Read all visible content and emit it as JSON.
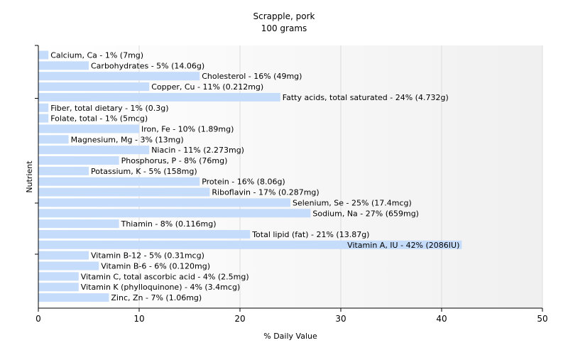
{
  "chart_data": {
    "type": "bar",
    "orientation": "horizontal",
    "title": "Scrapple, pork",
    "subtitle": "100 grams",
    "xlabel": "% Daily Value",
    "ylabel": "Nutrient",
    "xlim": [
      0,
      50
    ],
    "xticks": [
      "0",
      "10",
      "20",
      "30",
      "40",
      "50"
    ],
    "grid": true,
    "bar_color": "#c5dcfa",
    "categories": [
      "Calcium, Ca",
      "Carbohydrates",
      "Cholesterol",
      "Copper, Cu",
      "Fatty acids, total saturated",
      "Fiber, total dietary",
      "Folate, total",
      "Iron, Fe",
      "Magnesium, Mg",
      "Niacin",
      "Phosphorus, P",
      "Potassium, K",
      "Protein",
      "Riboflavin",
      "Selenium, Se",
      "Sodium, Na",
      "Thiamin",
      "Total lipid (fat)",
      "Vitamin A, IU",
      "Vitamin B-12",
      "Vitamin B-6",
      "Vitamin C, total ascorbic acid",
      "Vitamin K (phylloquinone)",
      "Zinc, Zn"
    ],
    "values": [
      1,
      5,
      16,
      11,
      24,
      1,
      1,
      10,
      3,
      11,
      8,
      5,
      16,
      17,
      25,
      27,
      8,
      21,
      42,
      5,
      6,
      4,
      4,
      7
    ],
    "labels": [
      "Calcium, Ca - 1% (7mg)",
      "Carbohydrates - 5% (14.06g)",
      "Cholesterol - 16% (49mg)",
      "Copper, Cu - 11% (0.212mg)",
      "Fatty acids, total saturated - 24% (4.732g)",
      "Fiber, total dietary - 1% (0.3g)",
      "Folate, total - 1% (5mcg)",
      "Iron, Fe - 10% (1.89mg)",
      "Magnesium, Mg - 3% (13mg)",
      "Niacin - 11% (2.273mg)",
      "Phosphorus, P - 8% (76mg)",
      "Potassium, K - 5% (158mg)",
      "Protein - 16% (8.06g)",
      "Riboflavin - 17% (0.287mg)",
      "Selenium, Se - 25% (17.4mcg)",
      "Sodium, Na - 27% (659mg)",
      "Thiamin - 8% (0.116mg)",
      "Total lipid (fat) - 21% (13.87g)",
      "Vitamin A, IU - 42% (2086IU)",
      "Vitamin B-12 - 5% (0.31mcg)",
      "Vitamin B-6 - 6% (0.120mg)",
      "Vitamin C, total ascorbic acid - 4% (2.5mg)",
      "Vitamin K (phylloquinone) - 4% (3.4mcg)",
      "Zinc, Zn - 7% (1.06mg)"
    ]
  }
}
